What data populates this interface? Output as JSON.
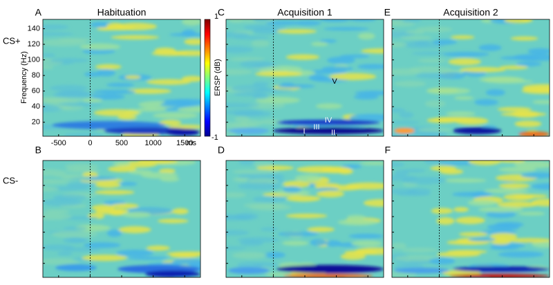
{
  "chart_data": {
    "type": "heatmap",
    "panels": [
      {
        "label": "A",
        "title": "Habituation"
      },
      {
        "label": "B"
      },
      {
        "label": "C",
        "title": "Acquisition 1"
      },
      {
        "label": "D"
      },
      {
        "label": "E",
        "title": "Acquisition 2"
      },
      {
        "label": "F"
      }
    ],
    "row_labels": [
      "CS+",
      "CS-"
    ],
    "ylabel": "Frequency (Hz)",
    "xlim": [
      -750,
      1750
    ],
    "xticks": [
      -500,
      0,
      500,
      1000,
      1500
    ],
    "x_unit": "ms",
    "ylim": [
      2,
      152
    ],
    "yticks": [
      20,
      40,
      60,
      80,
      100,
      120,
      140
    ],
    "colorbar": {
      "label": "ERSP (dB)",
      "ticks": [
        -1,
        1
      ]
    },
    "annotations": [
      "V",
      "IV",
      "III",
      "I",
      "II"
    ]
  }
}
